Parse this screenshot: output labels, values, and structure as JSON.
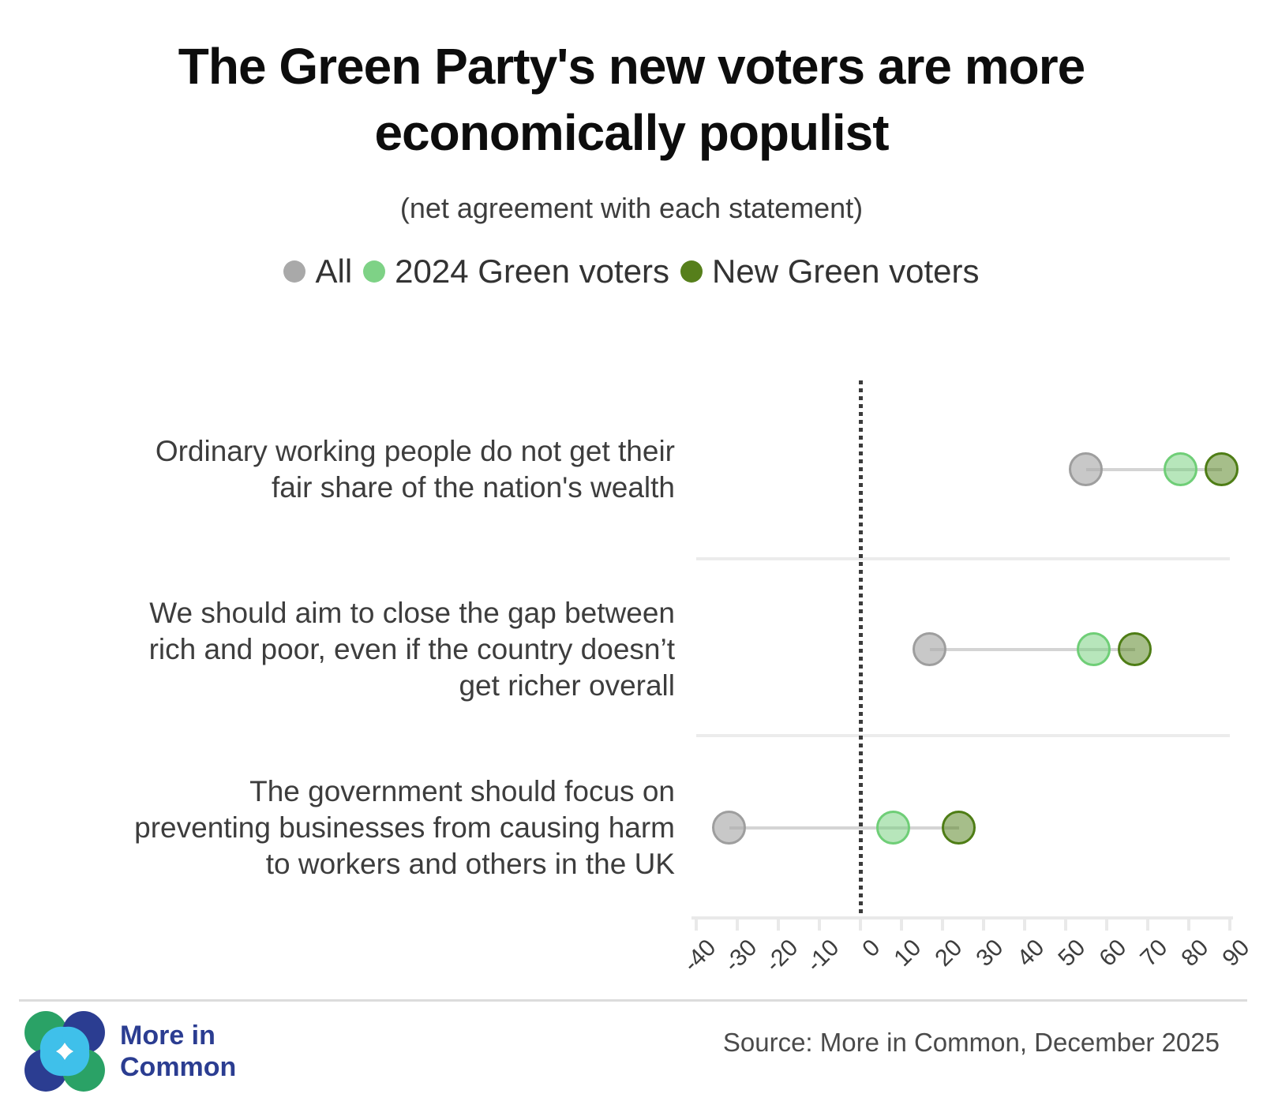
{
  "title": "The Green Party's new voters are more\neconomically populist",
  "subtitle": "(net agreement with each statement)",
  "chart_data": {
    "type": "dumbbell-dot",
    "title": "The Green Party's new voters are more economically populist",
    "subtitle": "(net agreement with each statement)",
    "categories": [
      "Ordinary working people do not get their\nfair share of the nation's wealth",
      "We should aim to close the gap between\nrich and poor, even if the country doesn’t\nget richer overall",
      "The government should focus on\npreventing businesses from causing harm\nto workers and others in the UK"
    ],
    "series": [
      {
        "name": "All",
        "values": [
          55,
          17,
          -32
        ],
        "legend_color": "#a9a9a9",
        "dot_stroke": "#9e9e9e",
        "dot_fill": "rgba(170,170,170,0.65)"
      },
      {
        "name": "2024 Green voters",
        "values": [
          78,
          57,
          8
        ],
        "legend_color": "#7ed286",
        "dot_stroke": "#6fce77",
        "dot_fill": "rgba(111,206,119,0.5)"
      },
      {
        "name": "New Green voters",
        "values": [
          88,
          67,
          24
        ],
        "legend_color": "#567f1b",
        "dot_stroke": "#4e7d15",
        "dot_fill": "rgba(78,125,21,0.5)"
      }
    ],
    "axis": {
      "min": -40,
      "max": 90,
      "ticks": [
        -40,
        -30,
        -20,
        -10,
        0,
        10,
        20,
        30,
        40,
        50,
        60,
        70,
        80,
        90
      ],
      "zero_line": true
    },
    "legend_position": "top",
    "grid": "row-separators",
    "style_colors": {
      "axis_line": "#e9e9e9",
      "tick_label": "#3d3d3d",
      "zero_line": "#3b3b3b",
      "separator": "#ececec",
      "connector": "#d4d4d4",
      "category_label": "#3d3d3d"
    }
  },
  "footer": {
    "logo_text": "More in\nCommon",
    "logo_colors": {
      "green": "#2aa266",
      "cyan": "#3fc0ea",
      "blue": "#2b3d91"
    },
    "source": "Source: More in Common, December 2025"
  }
}
